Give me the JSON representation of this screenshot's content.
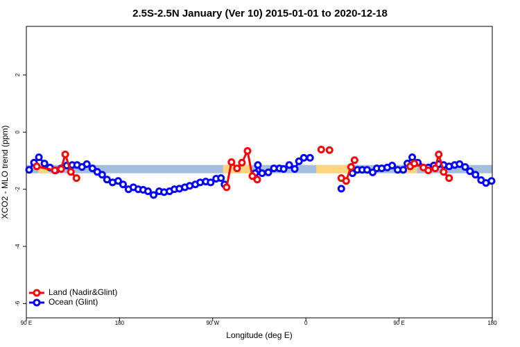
{
  "chart_data": {
    "type": "line",
    "title": "2.5S-2.5N January (Ver 10)   2015-01-01 to 2020-12-18",
    "xlabel": "Longitude (deg E)",
    "ylabel": "XCO2 - MLO trend (ppm)",
    "xlim": [
      90,
      540
    ],
    "ylim": [
      -6.5,
      3.7
    ],
    "xticks": [
      {
        "value": 90,
        "label": "90 E"
      },
      180,
      {
        "value": 270,
        "label": "90 W"
      },
      {
        "value": 360,
        "label": "0"
      },
      {
        "value": 450,
        "label": "90 E"
      },
      {
        "value": 540,
        "label": "180"
      }
    ],
    "yticks": [
      -6,
      -4,
      -2,
      0,
      2
    ],
    "legend": "bottom-left",
    "bands": {
      "ylim": [
        -1.44,
        -1.15
      ],
      "segments": [
        {
          "xlim": [
            90,
            540
          ],
          "color": "#a5bddf"
        },
        {
          "xlim": [
            101.4,
            112.8
          ],
          "color": "#fdd57e"
        },
        {
          "xlim": [
            280.0,
            307.6
          ],
          "color": "#fdd57e"
        },
        {
          "xlim": [
            370.0,
            403.6
          ],
          "color": "#fdd57e"
        },
        {
          "xlim": [
            457.4,
            467.4
          ],
          "color": "#fdd57e"
        }
      ]
    },
    "series": [
      {
        "name": "Ocean (Glint)",
        "color": "#0000ff",
        "x": [
          92.7,
          97.4,
          102.1,
          107.5,
          112.8,
          118.2,
          123.6,
          129.0,
          134.3,
          139.0,
          143.7,
          148.4,
          153.8,
          158.5,
          163.2,
          167.9,
          173.3,
          178.7,
          183.4,
          188.7,
          193.4,
          198.1,
          202.8,
          207.5,
          212.9,
          218.3,
          223.0,
          228.3,
          233.0,
          237.8,
          243.1,
          247.8,
          253.2,
          257.9,
          263.3,
          268.0,
          273.3,
          278.0,
          281.4,
          null,
          311.0,
          313.6,
          317.7,
          323.7,
          329.1,
          334.5,
          338.5,
          343.9,
          349.2,
          353.3,
          358.0,
          364.0,
          null,
          394.2,
          null,
          405.0,
          409.7,
          414.4,
          419.1,
          424.5,
          428.5,
          433.2,
          438.6,
          443.3,
          448.6,
          454.0,
          458.0,
          462.7,
          468.1,
          478.2,
          483.5,
          488.3,
          493.0,
          498.3,
          503.7,
          508.4,
          513.8,
          518.5,
          523.8,
          529.2,
          533.9,
          539.3
        ],
        "values": [
          -1.32,
          -1.07,
          -0.88,
          -1.1,
          -1.24,
          -1.34,
          -1.27,
          -1.17,
          -1.15,
          -1.15,
          -1.22,
          -1.12,
          -1.27,
          -1.39,
          -1.49,
          -1.66,
          -1.76,
          -1.71,
          -1.83,
          -2.0,
          -1.93,
          -2.0,
          -2.02,
          -2.07,
          -2.2,
          -2.07,
          -2.1,
          -2.07,
          -2.0,
          -1.98,
          -1.93,
          -1.88,
          -1.83,
          -1.76,
          -1.73,
          -1.76,
          -1.63,
          -1.61,
          -1.83,
          null,
          -1.44,
          -1.15,
          -1.44,
          -1.41,
          -1.27,
          -1.27,
          -1.29,
          -1.15,
          -1.29,
          -1.02,
          -0.9,
          -0.9,
          null,
          -1.98,
          null,
          -1.44,
          -1.32,
          -1.32,
          -1.32,
          -1.41,
          -1.27,
          -1.27,
          -1.24,
          -1.17,
          -1.32,
          -1.32,
          -1.1,
          -0.88,
          -1.07,
          -1.24,
          -1.17,
          -1.12,
          -1.15,
          -1.2,
          -1.15,
          -1.12,
          -1.22,
          -1.37,
          -1.49,
          -1.68,
          -1.78,
          -1.71
        ]
      },
      {
        "name": "Land (Nadir&Glint)",
        "color": "#ff0000",
        "x": [
          100.1,
          117.5,
          123.6,
          127.6,
          133.0,
          138.4,
          null,
          283.4,
          288.1,
          293.5,
          298.2,
          303.6,
          308.3,
          313.0,
          null,
          374.8,
          null,
          382.8,
          null,
          394.2,
          398.9,
          403.6,
          407.0,
          null,
          460.7,
          464.7,
          473.5,
          478.2,
          484.9,
          488.3,
          493.0,
          498.3
        ],
        "values": [
          -1.2,
          -1.34,
          -1.29,
          -0.78,
          -1.39,
          -1.61,
          null,
          -1.93,
          -1.05,
          -1.27,
          -1.07,
          -0.66,
          -1.54,
          -1.66,
          null,
          -0.61,
          null,
          -0.63,
          null,
          -1.61,
          -1.71,
          -1.22,
          -0.98,
          null,
          -1.2,
          -1.1,
          -1.24,
          -1.34,
          -1.27,
          -0.78,
          -1.39,
          -1.61
        ]
      }
    ]
  }
}
